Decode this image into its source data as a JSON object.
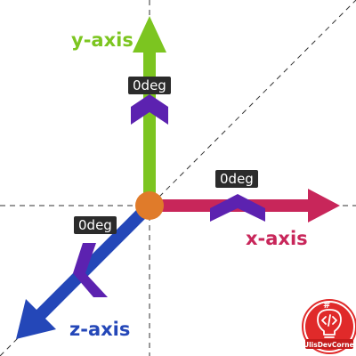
{
  "colors": {
    "x_axis": "#c8265a",
    "y_axis": "#7cc520",
    "z_axis": "#2447b8",
    "rotation_marker": "#5c22b0",
    "origin": "#e07b2a",
    "badge_bg": "#2b2b2b",
    "guide_line": "#333333",
    "logo_red": "#e02a2a"
  },
  "axes": {
    "x": {
      "label": "x-axis",
      "angle": "0deg"
    },
    "y": {
      "label": "y-axis",
      "angle": "0deg"
    },
    "z": {
      "label": "z-axis",
      "angle": "0deg"
    }
  },
  "logo": {
    "text": "UlisDevCorner",
    "icon": "code-bulb-icon"
  }
}
